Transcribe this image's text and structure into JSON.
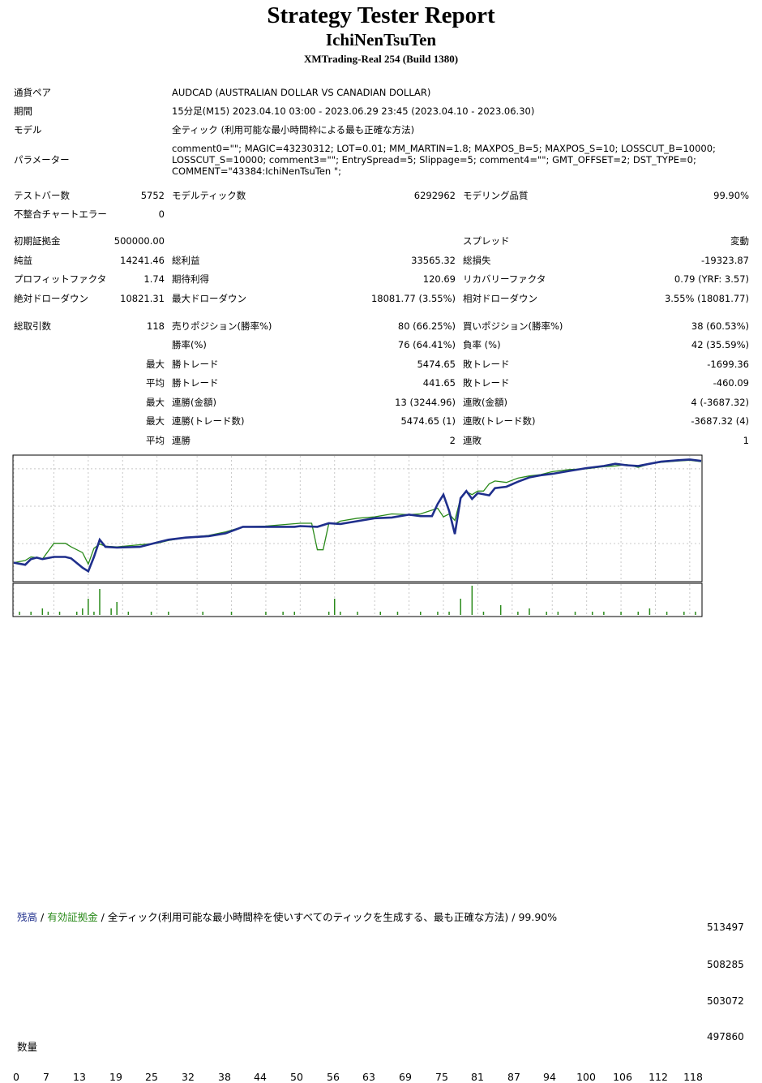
{
  "header": {
    "title": "Strategy Tester Report",
    "ea_name": "IchiNenTsuTen",
    "server": "XMTrading-Real 254 (Build 1380)"
  },
  "info": {
    "symbol": {
      "label": "通貨ペア",
      "value": "AUDCAD (AUSTRALIAN DOLLAR VS CANADIAN DOLLAR)"
    },
    "period": {
      "label": "期間",
      "value": "15分足(M15) 2023.04.10 03:00 - 2023.06.29 23:45 (2023.04.10 - 2023.06.30)"
    },
    "model": {
      "label": "モデル",
      "value": "全ティック (利用可能な最小時間枠による最も正確な方法)"
    },
    "params": {
      "label": "パラメーター",
      "value": "comment0=\"\"; MAGIC=43230312; LOT=0.01; MM_MARTIN=1.8; MAXPOS_B=5; MAXPOS_S=10; LOSSCUT_B=10000; LOSSCUT_S=10000; comment3=\"\"; EntrySpread=5; Slippage=5; comment4=\"\"; GMT_OFFSET=2; DST_TYPE=0; COMMENT=\"43384:IchiNenTsuTen \";"
    }
  },
  "stats": {
    "bars": {
      "label": "テストバー数",
      "value": "5752"
    },
    "ticks": {
      "label": "モデルティック数",
      "value": "6292962"
    },
    "quality": {
      "label": "モデリング品質",
      "value": "99.90%"
    },
    "mismatch": {
      "label": "不整合チャートエラー",
      "value": "0"
    },
    "deposit": {
      "label": "初期証拠金",
      "value": "500000.00"
    },
    "spread": {
      "label": "スプレッド",
      "value": "変動"
    },
    "net_profit": {
      "label": "純益",
      "value": "14241.46"
    },
    "gross_profit": {
      "label": "総利益",
      "value": "33565.32"
    },
    "gross_loss": {
      "label": "総損失",
      "value": "-19323.87"
    },
    "profit_factor": {
      "label": "プロフィットファクタ",
      "value": "1.74"
    },
    "expected_payoff": {
      "label": "期待利得",
      "value": "120.69"
    },
    "recovery_factor": {
      "label": "リカバリーファクタ",
      "value": "0.79 (YRF: 3.57)"
    },
    "abs_dd": {
      "label": "絶対ドローダウン",
      "value": "10821.31"
    },
    "max_dd": {
      "label": "最大ドローダウン",
      "value": "18081.77 (3.55%)"
    },
    "rel_dd": {
      "label": "相対ドローダウン",
      "value": "3.55% (18081.77)"
    },
    "total_trades": {
      "label": "総取引数",
      "value": "118"
    },
    "short_positions": {
      "label": "売りポジション(勝率%)",
      "value": "80 (66.25%)"
    },
    "long_positions": {
      "label": "買いポジション(勝率%)",
      "value": "38 (60.53%)"
    },
    "win_rate": {
      "label": "勝率(%)",
      "value": "76 (64.41%)"
    },
    "loss_rate": {
      "label": "負率 (%)",
      "value": "42 (35.59%)"
    },
    "largest_win": {
      "prefix": "最大",
      "label": "勝トレード",
      "value": "5474.65"
    },
    "largest_loss": {
      "label": "敗トレード",
      "value": "-1699.36"
    },
    "avg_win": {
      "prefix": "平均",
      "label": "勝トレード",
      "value": "441.65"
    },
    "avg_loss": {
      "label": "敗トレード",
      "value": "-460.09"
    },
    "max_consec_wins_amt": {
      "prefix": "最大",
      "label": "連勝(金額)",
      "value": "13 (3244.96)"
    },
    "max_consec_losses_amt": {
      "label": "連敗(金額)",
      "value": "4 (-3687.32)"
    },
    "max_consec_wins_cnt": {
      "prefix": "最大",
      "label": "連勝(トレード数)",
      "value": "5474.65 (1)"
    },
    "max_consec_losses_cnt": {
      "label": "連敗(トレード数)",
      "value": "-3687.32 (4)"
    },
    "avg_consec_wins": {
      "prefix": "平均",
      "label": "連勝",
      "value": "2"
    },
    "avg_consec_losses": {
      "label": "連敗",
      "value": "1"
    }
  },
  "chart_legend": {
    "balance": "残高",
    "sep1": " / ",
    "equity": "有効証拠金",
    "sep2": " / ",
    "rest": "全ティック(利用可能な最小時間枠を使いすべてのティックを生成する、最も正確な方法)",
    "sep3": " / ",
    "quality": "99.90%"
  },
  "colors": {
    "balance": "#1f2f8c",
    "equity": "#2a8a1a",
    "volume": "#2a8a1a",
    "grid": "#c8c8c8"
  },
  "chart_data": {
    "type": "line",
    "y_ticks": [
      "513497",
      "508285",
      "503072",
      "497860"
    ],
    "x_ticks": [
      "0",
      "7",
      "13",
      "19",
      "25",
      "32",
      "38",
      "44",
      "50",
      "56",
      "63",
      "69",
      "75",
      "81",
      "87",
      "94",
      "100",
      "106",
      "112",
      "118"
    ],
    "volume_label": "数量",
    "ylim": [
      497860,
      515300
    ],
    "xlim": [
      0,
      120
    ],
    "series": [
      {
        "name": "残高",
        "x": [
          0,
          2,
          3,
          4,
          5,
          7,
          9,
          10,
          12,
          13,
          14,
          15,
          16,
          18,
          22,
          25,
          27,
          30,
          34,
          37,
          40,
          44,
          49,
          50,
          53,
          55,
          57,
          60,
          63,
          66,
          69,
          71,
          72,
          73,
          74,
          75,
          76,
          77,
          78,
          79,
          80,
          81,
          83,
          84,
          86,
          88,
          90,
          92,
          94,
          97,
          100,
          103,
          105,
          107,
          109,
          111,
          113,
          116,
          118,
          120
        ],
        "y": [
          500400,
          500100,
          500900,
          501100,
          500900,
          501200,
          501200,
          501000,
          499700,
          499200,
          501200,
          503600,
          502600,
          502500,
          502600,
          503200,
          503600,
          503900,
          504100,
          504500,
          505400,
          505400,
          505400,
          505500,
          505400,
          505900,
          505800,
          506200,
          506600,
          506700,
          507100,
          506900,
          506900,
          506900,
          508600,
          509900,
          507600,
          504400,
          509400,
          510400,
          509300,
          510100,
          509800,
          510800,
          511000,
          511700,
          512300,
          512600,
          512800,
          513200,
          513600,
          513900,
          514200,
          514000,
          513900,
          514200,
          514500,
          514700,
          514800,
          514600
        ]
      },
      {
        "name": "有効証拠金",
        "x": [
          0,
          2,
          3,
          4,
          5,
          7,
          9,
          10,
          12,
          13,
          14,
          15,
          16,
          18,
          22,
          25,
          27,
          30,
          34,
          37,
          40,
          44,
          50,
          52,
          53,
          54,
          55,
          56,
          57,
          60,
          63,
          66,
          69,
          71,
          74,
          75,
          76,
          77,
          78,
          79,
          80,
          81,
          82,
          83,
          84,
          86,
          88,
          90,
          92,
          94,
          97,
          100,
          103,
          105,
          107,
          109,
          111,
          113,
          116,
          118,
          120
        ],
        "y": [
          500400,
          500700,
          501200,
          501100,
          500900,
          503100,
          503100,
          502600,
          501800,
          500200,
          502400,
          503000,
          502700,
          502600,
          502900,
          503100,
          503500,
          503900,
          504200,
          504700,
          505400,
          505500,
          505900,
          505900,
          502200,
          502200,
          505900,
          505800,
          506200,
          506600,
          506800,
          507200,
          507100,
          507200,
          508000,
          506800,
          507200,
          506300,
          509400,
          510300,
          509900,
          510400,
          510400,
          511400,
          511800,
          511600,
          512200,
          512500,
          512700,
          513100,
          513400,
          513500,
          513800,
          513900,
          514100,
          513700,
          514200,
          514400,
          514600,
          514700,
          514500
        ]
      }
    ],
    "volume": {
      "x": [
        1,
        3,
        5,
        6,
        8,
        11,
        12,
        13,
        14,
        15,
        17,
        18,
        20,
        24,
        27,
        33,
        38,
        44,
        47,
        49,
        55,
        56,
        57,
        60,
        64,
        67,
        71,
        74,
        76,
        78,
        80,
        82,
        85,
        88,
        90,
        93,
        95,
        98,
        101,
        103,
        106,
        109,
        111,
        114,
        117,
        119
      ],
      "y": [
        1,
        1,
        2,
        1,
        1,
        1,
        2,
        5,
        1,
        8,
        2,
        4,
        1,
        1,
        1,
        1,
        1,
        1,
        1,
        1,
        1,
        5,
        1,
        1,
        1,
        1,
        1,
        1,
        1,
        5,
        9,
        1,
        3,
        1,
        2,
        1,
        1,
        1,
        1,
        1,
        1,
        1,
        2,
        1,
        1,
        1
      ]
    }
  }
}
